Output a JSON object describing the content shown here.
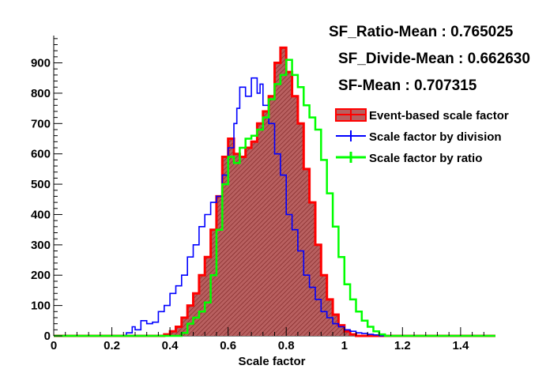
{
  "stats": {
    "ratio_mean": "SF_Ratio-Mean : 0.765025",
    "divide_mean": "SF_Divide-Mean : 0.662630",
    "sf_mean": "SF-Mean : 0.707315"
  },
  "chart_data": {
    "type": "histogram",
    "title": "",
    "xlabel": "Scale factor",
    "ylabel": "",
    "xlim": [
      0,
      1.52
    ],
    "ylim": [
      0,
      990
    ],
    "x_ticks": [
      "0",
      "0.2",
      "0.4",
      "0.6",
      "0.8",
      "1",
      "1.2",
      "1.4"
    ],
    "y_ticks": [
      "0",
      "100",
      "200",
      "300",
      "400",
      "500",
      "600",
      "700",
      "800",
      "900"
    ],
    "legend": {
      "position": "top-right",
      "entries": [
        "Event-based scale factor",
        "Scale factor by division",
        "Scale factor by ratio"
      ]
    },
    "series": [
      {
        "name": "Scale factor by division",
        "color": "#0000ff",
        "style": "step",
        "points": [
          [
            0.0,
            0
          ],
          [
            0.24,
            0
          ],
          [
            0.25,
            10
          ],
          [
            0.27,
            30
          ],
          [
            0.28,
            20
          ],
          [
            0.3,
            50
          ],
          [
            0.32,
            40
          ],
          [
            0.34,
            45
          ],
          [
            0.36,
            80
          ],
          [
            0.38,
            100
          ],
          [
            0.4,
            140
          ],
          [
            0.42,
            165
          ],
          [
            0.44,
            200
          ],
          [
            0.46,
            260
          ],
          [
            0.48,
            300
          ],
          [
            0.5,
            360
          ],
          [
            0.52,
            400
          ],
          [
            0.54,
            440
          ],
          [
            0.56,
            460
          ],
          [
            0.58,
            530
          ],
          [
            0.6,
            620
          ],
          [
            0.62,
            700
          ],
          [
            0.63,
            750
          ],
          [
            0.64,
            820
          ],
          [
            0.66,
            790
          ],
          [
            0.68,
            850
          ],
          [
            0.7,
            800
          ],
          [
            0.71,
            830
          ],
          [
            0.72,
            760
          ],
          [
            0.74,
            700
          ],
          [
            0.76,
            600
          ],
          [
            0.78,
            530
          ],
          [
            0.8,
            400
          ],
          [
            0.82,
            350
          ],
          [
            0.84,
            280
          ],
          [
            0.86,
            200
          ],
          [
            0.88,
            160
          ],
          [
            0.9,
            120
          ],
          [
            0.92,
            80
          ],
          [
            0.94,
            60
          ],
          [
            0.96,
            40
          ],
          [
            0.98,
            30
          ],
          [
            1.0,
            20
          ],
          [
            1.02,
            15
          ],
          [
            1.04,
            10
          ],
          [
            1.06,
            8
          ],
          [
            1.08,
            5
          ],
          [
            1.1,
            3
          ],
          [
            1.12,
            0
          ]
        ]
      },
      {
        "name": "Scale factor by ratio",
        "color": "#00ff00",
        "style": "step",
        "points": [
          [
            0.0,
            0
          ],
          [
            0.42,
            0
          ],
          [
            0.44,
            10
          ],
          [
            0.46,
            40
          ],
          [
            0.48,
            60
          ],
          [
            0.5,
            80
          ],
          [
            0.52,
            110
          ],
          [
            0.54,
            200
          ],
          [
            0.56,
            350
          ],
          [
            0.58,
            500
          ],
          [
            0.6,
            590
          ],
          [
            0.62,
            570
          ],
          [
            0.64,
            620
          ],
          [
            0.66,
            650
          ],
          [
            0.68,
            660
          ],
          [
            0.7,
            680
          ],
          [
            0.72,
            720
          ],
          [
            0.74,
            780
          ],
          [
            0.76,
            830
          ],
          [
            0.78,
            860
          ],
          [
            0.8,
            910
          ],
          [
            0.82,
            860
          ],
          [
            0.84,
            820
          ],
          [
            0.86,
            760
          ],
          [
            0.88,
            720
          ],
          [
            0.9,
            680
          ],
          [
            0.92,
            580
          ],
          [
            0.94,
            470
          ],
          [
            0.96,
            360
          ],
          [
            0.98,
            260
          ],
          [
            1.0,
            170
          ],
          [
            1.02,
            120
          ],
          [
            1.04,
            80
          ],
          [
            1.06,
            50
          ],
          [
            1.08,
            30
          ],
          [
            1.1,
            15
          ],
          [
            1.12,
            5
          ],
          [
            1.14,
            0
          ]
        ]
      },
      {
        "name": "Event-based scale factor",
        "color": "#ff0000",
        "fill": "#b86060",
        "style": "filled-step",
        "points": [
          [
            0.0,
            0
          ],
          [
            0.36,
            0
          ],
          [
            0.38,
            5
          ],
          [
            0.4,
            15
          ],
          [
            0.42,
            30
          ],
          [
            0.44,
            60
          ],
          [
            0.46,
            100
          ],
          [
            0.48,
            140
          ],
          [
            0.5,
            200
          ],
          [
            0.52,
            260
          ],
          [
            0.54,
            350
          ],
          [
            0.56,
            460
          ],
          [
            0.58,
            590
          ],
          [
            0.6,
            650
          ],
          [
            0.62,
            600
          ],
          [
            0.64,
            590
          ],
          [
            0.66,
            620
          ],
          [
            0.68,
            640
          ],
          [
            0.7,
            700
          ],
          [
            0.72,
            740
          ],
          [
            0.74,
            790
          ],
          [
            0.76,
            900
          ],
          [
            0.78,
            950
          ],
          [
            0.8,
            870
          ],
          [
            0.82,
            790
          ],
          [
            0.84,
            700
          ],
          [
            0.86,
            550
          ],
          [
            0.88,
            440
          ],
          [
            0.9,
            300
          ],
          [
            0.92,
            200
          ],
          [
            0.94,
            120
          ],
          [
            0.96,
            70
          ],
          [
            0.98,
            35
          ],
          [
            1.0,
            15
          ],
          [
            1.02,
            5
          ],
          [
            1.04,
            0
          ]
        ]
      }
    ]
  }
}
